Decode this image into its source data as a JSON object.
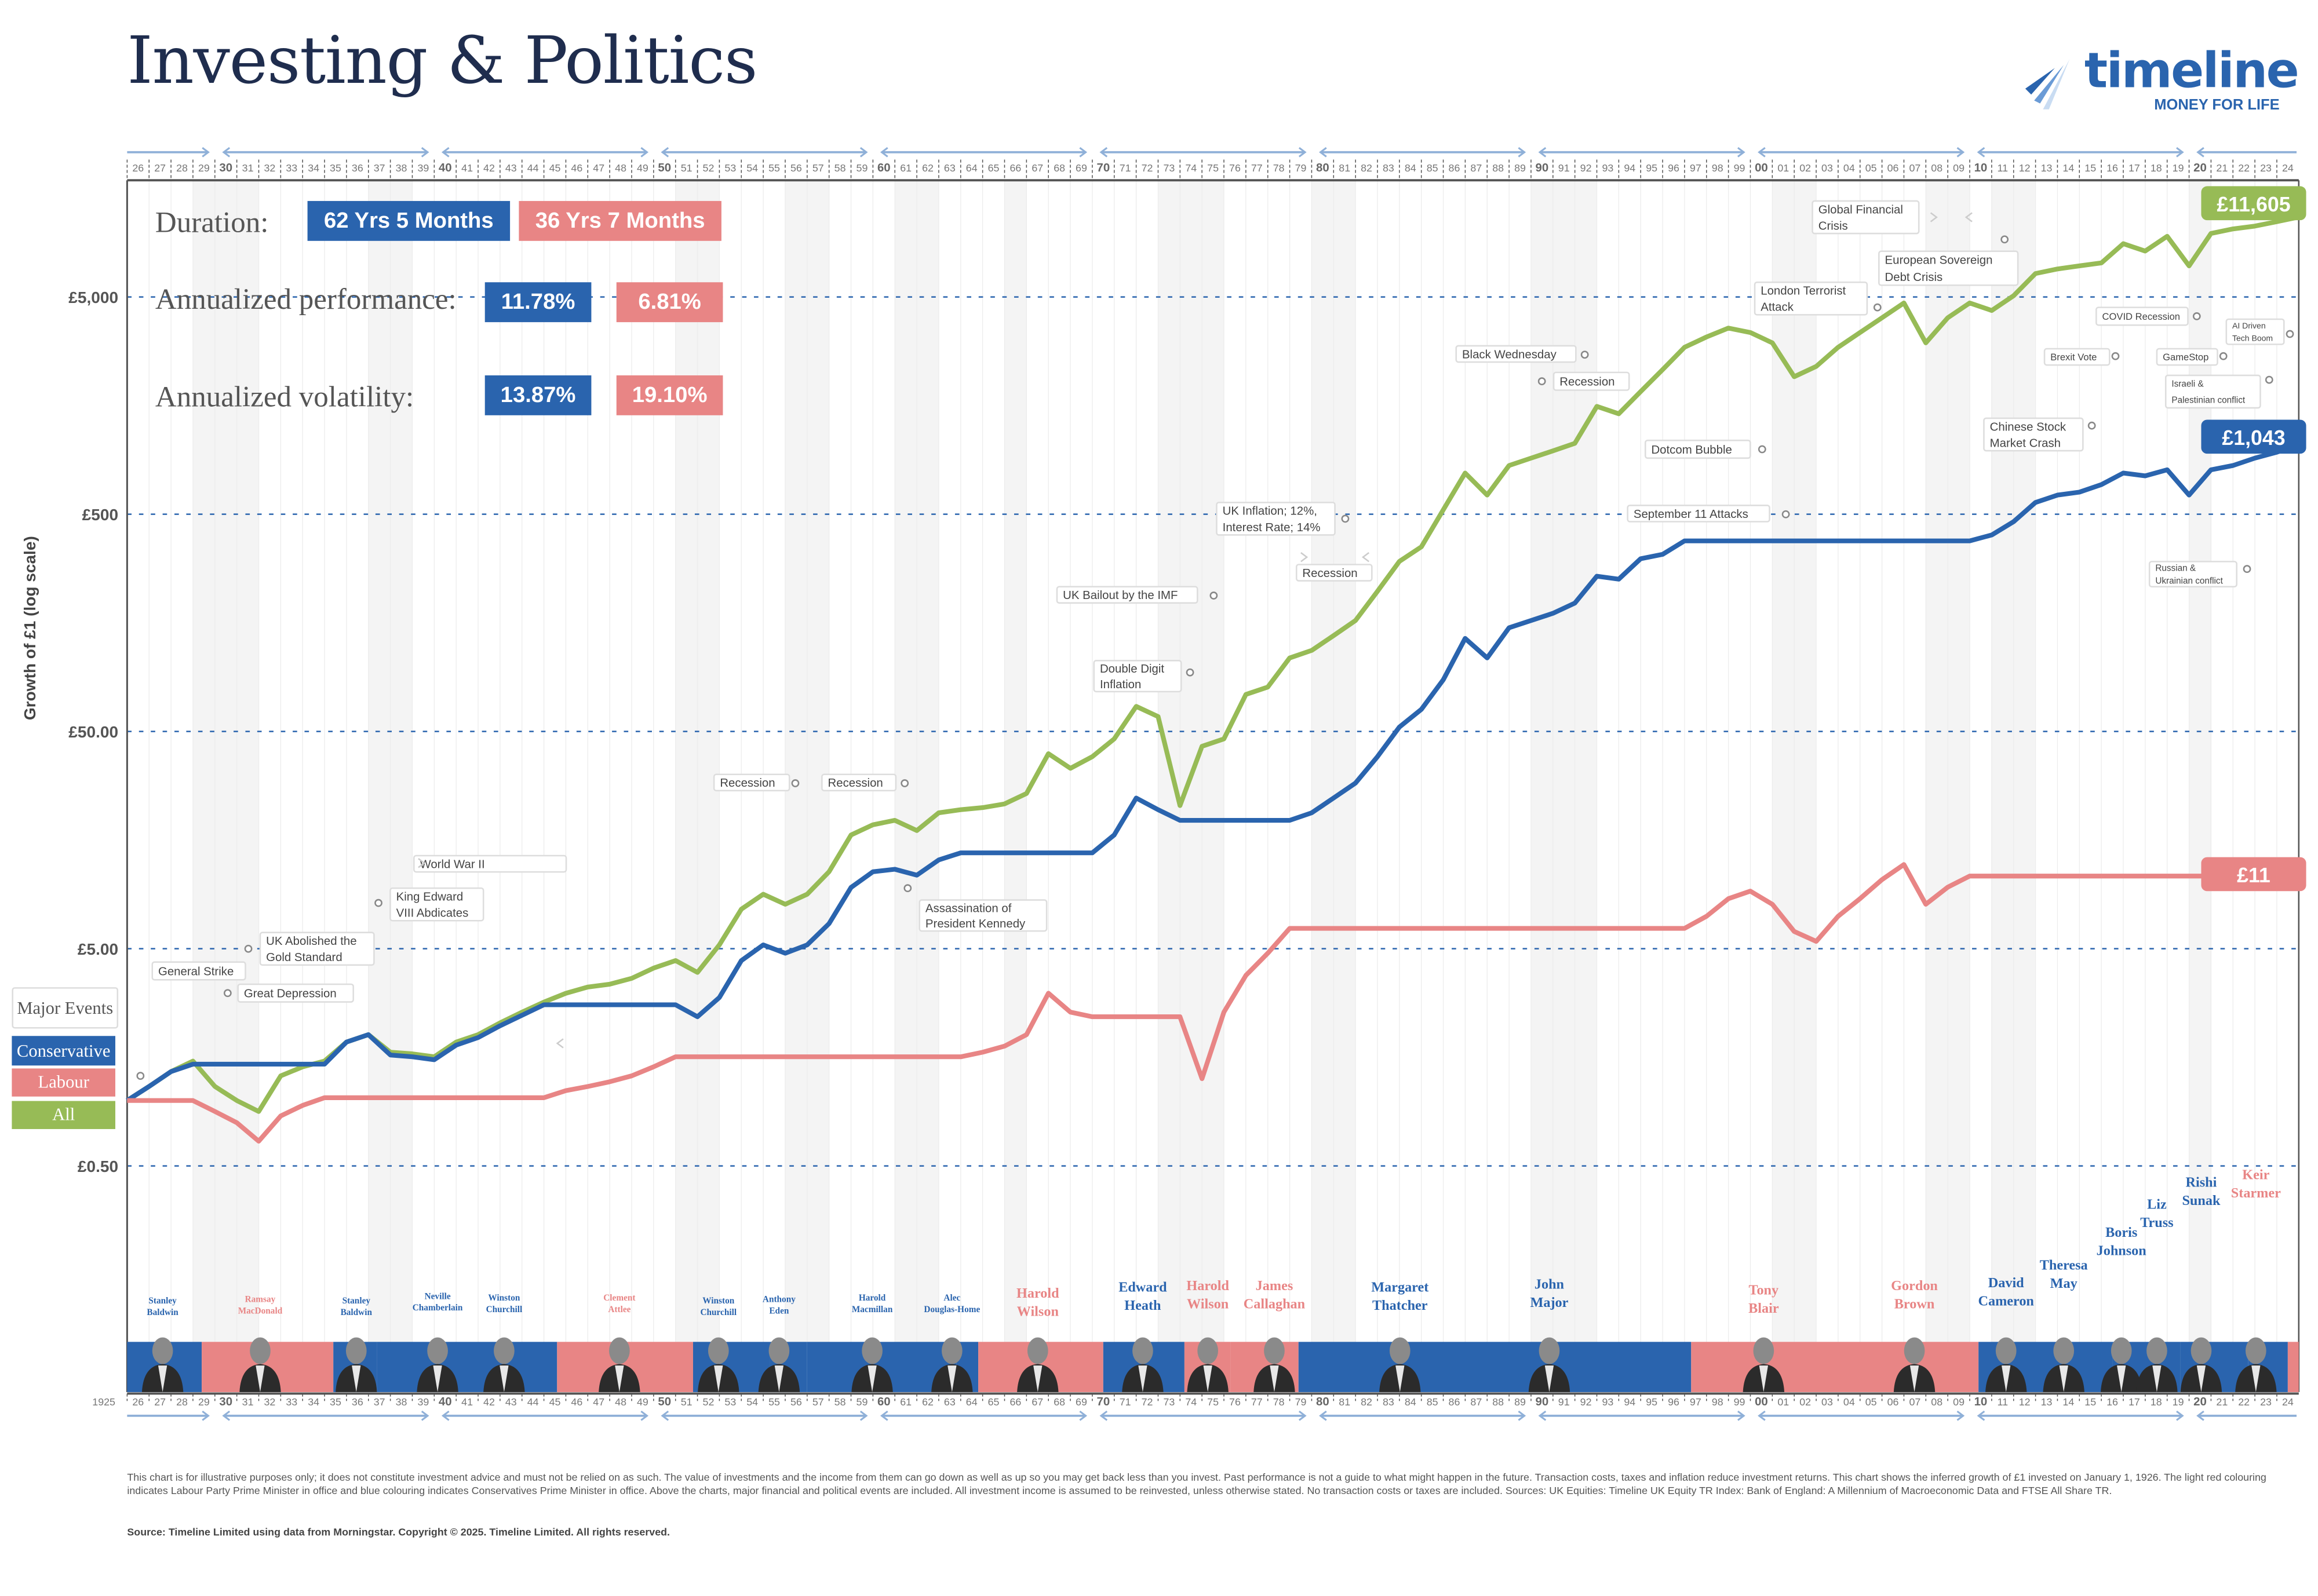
{
  "title": "Investing & Politics",
  "logo": {
    "word": "timeline",
    "tagline": "MONEY FOR LIFE"
  },
  "stats": {
    "duration_label": "Duration:",
    "duration_con": "62 Yrs 5 Months",
    "duration_lab": "36 Yrs 7 Months",
    "performance_label": "Annualized performance:",
    "performance_con": "11.78%",
    "performance_lab": "6.81%",
    "volatility_label": "Annualized volatility:",
    "volatility_con": "13.87%",
    "volatility_lab": "19.10%"
  },
  "legend": {
    "events": "Major Events",
    "conservative": "Conservative",
    "labour": "Labour",
    "all": "All"
  },
  "colors": {
    "conservative": "#2a64ae",
    "labour": "#e88585",
    "all": "#97bb56",
    "title": "#1f2d4e"
  },
  "end_labels": {
    "all": "£11,605",
    "conservative": "£1,043",
    "labour": "£11"
  },
  "chart_data": {
    "type": "line",
    "ylabel": "Growth of £1 (log scale)",
    "yscale": "log",
    "ylim": [
      0.3,
      14000
    ],
    "y_ticks": [
      {
        "value": 5000,
        "label": "£5,000"
      },
      {
        "value": 500,
        "label": "£500"
      },
      {
        "value": 50,
        "label": "£50.00"
      },
      {
        "value": 5,
        "label": "£5.00"
      },
      {
        "value": 0.5,
        "label": "£0.50"
      }
    ],
    "grid": "dotted horizontal at y ticks",
    "x_start_label": "1925",
    "x_tick_labels": [
      "26",
      "27",
      "28",
      "29",
      "30",
      "31",
      "32",
      "33",
      "34",
      "35",
      "36",
      "37",
      "38",
      "39",
      "40",
      "41",
      "42",
      "43",
      "44",
      "45",
      "46",
      "47",
      "48",
      "49",
      "50",
      "51",
      "52",
      "53",
      "54",
      "55",
      "56",
      "57",
      "58",
      "59",
      "60",
      "61",
      "62",
      "63",
      "64",
      "65",
      "66",
      "67",
      "68",
      "69",
      "70",
      "71",
      "72",
      "73",
      "74",
      "75",
      "76",
      "77",
      "78",
      "79",
      "80",
      "81",
      "82",
      "83",
      "84",
      "85",
      "86",
      "87",
      "88",
      "89",
      "90",
      "91",
      "92",
      "93",
      "94",
      "95",
      "96",
      "97",
      "98",
      "99",
      "00",
      "01",
      "02",
      "03",
      "04",
      "05",
      "06",
      "07",
      "08",
      "09",
      "10",
      "11",
      "12",
      "13",
      "14",
      "15",
      "16",
      "17",
      "18",
      "19",
      "20",
      "21",
      "22",
      "23",
      "24"
    ],
    "x": [
      1926,
      1927,
      1928,
      1929,
      1930,
      1931,
      1932,
      1933,
      1934,
      1935,
      1936,
      1937,
      1938,
      1939,
      1940,
      1941,
      1942,
      1943,
      1944,
      1945,
      1946,
      1947,
      1948,
      1949,
      1950,
      1951,
      1952,
      1953,
      1954,
      1955,
      1956,
      1957,
      1958,
      1959,
      1960,
      1961,
      1962,
      1963,
      1964,
      1965,
      1966,
      1967,
      1968,
      1969,
      1970,
      1971,
      1972,
      1973,
      1974,
      1975,
      1976,
      1977,
      1978,
      1979,
      1980,
      1981,
      1982,
      1983,
      1984,
      1985,
      1986,
      1987,
      1988,
      1989,
      1990,
      1991,
      1992,
      1993,
      1994,
      1995,
      1996,
      1997,
      1998,
      1999,
      2000,
      2001,
      2002,
      2003,
      2004,
      2005,
      2006,
      2007,
      2008,
      2009,
      2010,
      2011,
      2012,
      2013,
      2014,
      2015,
      2016,
      2017,
      2018,
      2019,
      2020,
      2021,
      2022,
      2023,
      2024,
      2025
    ],
    "series": [
      {
        "name": "All",
        "color": "#97bb56",
        "values": [
          1.0,
          1.16,
          1.36,
          1.52,
          1.16,
          1.0,
          0.89,
          1.3,
          1.43,
          1.52,
          1.86,
          2.01,
          1.67,
          1.64,
          1.59,
          1.86,
          2.01,
          2.28,
          2.55,
          2.84,
          3.12,
          3.33,
          3.43,
          3.65,
          4.07,
          4.41,
          3.89,
          5.2,
          7.6,
          8.9,
          8.0,
          8.9,
          11.3,
          16.7,
          18.6,
          19.5,
          17.5,
          21.1,
          21.8,
          22.3,
          23.2,
          25.9,
          39.5,
          33.8,
          38.3,
          46.2,
          65.2,
          58.5,
          22.8,
          42.7,
          46.2,
          74,
          80,
          109,
          118,
          138,
          162,
          221,
          303,
          354,
          524,
          774,
          612,
          838,
          906,
          979,
          1059,
          1567,
          1449,
          1833,
          2317,
          2931,
          3273,
          3594,
          3428,
          3076,
          2148,
          2395,
          2931,
          3428,
          4011,
          4690,
          3076,
          4011,
          4690,
          4335,
          5070,
          6412,
          6730,
          6950,
          7170,
          8790,
          8130,
          9510,
          6950,
          9800,
          10280,
          10600,
          11100,
          11605
        ]
      },
      {
        "name": "Conservative",
        "color": "#2a64ae",
        "values": [
          1.0,
          1.16,
          1.36,
          1.47,
          1.47,
          1.47,
          1.47,
          1.47,
          1.47,
          1.47,
          1.86,
          2.01,
          1.62,
          1.59,
          1.54,
          1.8,
          1.95,
          2.21,
          2.47,
          2.76,
          2.76,
          2.76,
          2.76,
          2.76,
          2.76,
          2.76,
          2.43,
          2.98,
          4.41,
          5.2,
          4.77,
          5.2,
          6.52,
          9.57,
          11.3,
          11.6,
          10.9,
          12.8,
          13.8,
          13.8,
          13.8,
          13.8,
          13.8,
          13.8,
          13.8,
          16.7,
          24.7,
          21.8,
          19.5,
          19.5,
          19.5,
          19.5,
          19.5,
          19.5,
          21.1,
          24.7,
          28.9,
          38.3,
          52.4,
          63.2,
          86.5,
          134,
          109,
          150,
          162,
          175,
          195,
          259,
          251,
          312,
          327,
          377,
          377,
          377,
          377,
          377,
          377,
          377,
          377,
          377,
          377,
          377,
          377,
          377,
          377,
          401,
          462,
          566,
          612,
          632,
          684,
          774,
          751,
          800,
          612,
          800,
          838,
          906,
          964,
          1043
        ]
      },
      {
        "name": "Labour",
        "color": "#e88585",
        "values": [
          1.0,
          1.0,
          1.0,
          1.0,
          0.89,
          0.79,
          0.65,
          0.85,
          0.95,
          1.03,
          1.03,
          1.03,
          1.03,
          1.03,
          1.03,
          1.03,
          1.03,
          1.03,
          1.03,
          1.03,
          1.11,
          1.16,
          1.22,
          1.3,
          1.43,
          1.59,
          1.59,
          1.59,
          1.59,
          1.59,
          1.59,
          1.59,
          1.59,
          1.59,
          1.59,
          1.59,
          1.59,
          1.59,
          1.59,
          1.67,
          1.78,
          2.01,
          3.12,
          2.55,
          2.43,
          2.43,
          2.43,
          2.43,
          2.43,
          1.26,
          2.55,
          3.77,
          4.77,
          6.2,
          6.2,
          6.2,
          6.2,
          6.2,
          6.2,
          6.2,
          6.2,
          6.2,
          6.2,
          6.2,
          6.2,
          6.2,
          6.2,
          6.2,
          6.2,
          6.2,
          6.2,
          6.2,
          7.05,
          8.5,
          9.2,
          8.0,
          6.0,
          5.4,
          7.05,
          8.5,
          10.4,
          12.2,
          8.0,
          9.6,
          10.8,
          10.8,
          10.8,
          10.8,
          10.8,
          10.8,
          10.8,
          10.8,
          10.8,
          10.8,
          10.8,
          10.8,
          10.8,
          10.8,
          10.8,
          11
        ]
      }
    ],
    "prime_ministers": [
      {
        "name": [
          "Stanley",
          "Baldwin"
        ],
        "party": "Conservative",
        "start": 1926,
        "end": 1929.4
      },
      {
        "name": [
          "Ramsay",
          "MacDonald"
        ],
        "party": "Labour",
        "start": 1929.4,
        "end": 1935.4
      },
      {
        "name": [
          "Stanley",
          "Baldwin"
        ],
        "party": "Conservative",
        "start": 1935.4,
        "end": 1937.4
      },
      {
        "name": [
          "Neville",
          "Chamberlain"
        ],
        "party": "Conservative",
        "start": 1937.4,
        "end": 1940.4
      },
      {
        "name": [
          "Winston",
          "Churchill"
        ],
        "party": "Conservative",
        "start": 1940.4,
        "end": 1945.6
      },
      {
        "name": [
          "Clement",
          "Attlee"
        ],
        "party": "Labour",
        "start": 1945.6,
        "end": 1951.8
      },
      {
        "name": [
          "Winston",
          "Churchill"
        ],
        "party": "Conservative",
        "start": 1951.8,
        "end": 1955.3
      },
      {
        "name": [
          "Anthony",
          "Eden"
        ],
        "party": "Conservative",
        "start": 1955.3,
        "end": 1957.0
      },
      {
        "name": [
          "Harold",
          "Macmillan"
        ],
        "party": "Conservative",
        "start": 1957.0,
        "end": 1963.8
      },
      {
        "name": [
          "Alec",
          "Douglas-Home"
        ],
        "party": "Conservative",
        "start": 1963.8,
        "end": 1964.8
      },
      {
        "name": [
          "Harold",
          "Wilson"
        ],
        "party": "Labour",
        "start": 1964.8,
        "end": 1970.5
      },
      {
        "name": [
          "Edward",
          "Heath"
        ],
        "party": "Conservative",
        "start": 1970.5,
        "end": 1974.2
      },
      {
        "name": [
          "Harold",
          "Wilson"
        ],
        "party": "Labour",
        "start": 1974.2,
        "end": 1976.3
      },
      {
        "name": [
          "James",
          "Callaghan"
        ],
        "party": "Labour",
        "start": 1976.3,
        "end": 1979.4
      },
      {
        "name": [
          "Margaret",
          "Thatcher"
        ],
        "party": "Conservative",
        "start": 1979.4,
        "end": 1990.9
      },
      {
        "name": [
          "John",
          "Major"
        ],
        "party": "Conservative",
        "start": 1990.9,
        "end": 1997.3
      },
      {
        "name": [
          "Tony",
          "Blair"
        ],
        "party": "Labour",
        "start": 1997.3,
        "end": 2007.5
      },
      {
        "name": [
          "Gordon",
          "Brown"
        ],
        "party": "Labour",
        "start": 2007.5,
        "end": 2010.4
      },
      {
        "name": [
          "David",
          "Cameron"
        ],
        "party": "Conservative",
        "start": 2010.4,
        "end": 2016.5
      },
      {
        "name": [
          "Theresa",
          "May"
        ],
        "party": "Conservative",
        "start": 2016.5,
        "end": 2019.6
      },
      {
        "name": [
          "Boris",
          "Johnson"
        ],
        "party": "Conservative",
        "start": 2019.6,
        "end": 2022.7
      },
      {
        "name": [
          "Liz",
          "Truss"
        ],
        "party": "Conservative",
        "start": 2022.7,
        "end": 2022.8
      },
      {
        "name": [
          "Rishi",
          "Sunak"
        ],
        "party": "Conservative",
        "start": 2022.8,
        "end": 2024.5
      },
      {
        "name": [
          "Keir",
          "Starmer"
        ],
        "party": "Labour",
        "start": 2024.5,
        "end": 2025
      }
    ],
    "events": [
      {
        "lines": [
          "General Strike"
        ]
      },
      {
        "lines": [
          "UK Abolished the",
          "Gold Standard"
        ]
      },
      {
        "lines": [
          "Great Depression"
        ]
      },
      {
        "lines": [
          "King Edward",
          "VIII Abdicates"
        ]
      },
      {
        "lines": [
          "World War II"
        ]
      },
      {
        "lines": [
          "Recession"
        ]
      },
      {
        "lines": [
          "Recession"
        ]
      },
      {
        "lines": [
          "Assassination of",
          "President Kennedy"
        ]
      },
      {
        "lines": [
          "Double Digit",
          "Inflation"
        ]
      },
      {
        "lines": [
          "UK Bailout by the IMF"
        ]
      },
      {
        "lines": [
          "UK Inflation; 12%,",
          "Interest Rate; 14%"
        ]
      },
      {
        "lines": [
          "Recession"
        ]
      },
      {
        "lines": [
          "Black Wednesday"
        ]
      },
      {
        "lines": [
          "Recession"
        ]
      },
      {
        "lines": [
          "Dotcom Bubble"
        ]
      },
      {
        "lines": [
          "September 11 Attacks"
        ]
      },
      {
        "lines": [
          "London Terrorist",
          "Attack"
        ]
      },
      {
        "lines": [
          "Global Financial",
          "Crisis"
        ]
      },
      {
        "lines": [
          "European Sovereign",
          "Debt Crisis"
        ]
      },
      {
        "lines": [
          "Chinese Stock",
          "Market Crash"
        ]
      },
      {
        "lines": [
          "Brexit Vote"
        ]
      },
      {
        "lines": [
          "COVID Recession"
        ]
      },
      {
        "lines": [
          "GameStop"
        ]
      },
      {
        "lines": [
          "Israeli &",
          "Palestinian conflict"
        ]
      },
      {
        "lines": [
          "AI Driven",
          "Tech Boom"
        ]
      },
      {
        "lines": [
          "Russian &",
          "Ukrainian conflict"
        ]
      }
    ]
  },
  "footer": {
    "disclaimer": "This chart is for illustrative purposes only; it does not constitute investment advice and must not be relied on as such. The value of investments and the income from them can go down as well as up so you may get back less than you invest. Past performance is not a guide to what might happen in the future. Transaction costs, taxes and inflation reduce investment returns. This chart shows the inferred growth of £1 invested on January 1, 1926. The light red colouring indicates Labour Party Prime Minister in office and blue colouring indicates Conservatives Prime Minister in office. Above the charts, major financial and political events are included. All investment income is assumed to be reinvested, unless otherwise stated. No transaction costs or taxes are included. Sources: UK Equities: Timeline UK Equity TR Index: Bank of England: A Millennium of Macroeconomic Data and FTSE All Share TR.",
    "source": "Source: Timeline Limited using data from Morningstar. Copyright © 2025. Timeline Limited. All rights reserved."
  }
}
